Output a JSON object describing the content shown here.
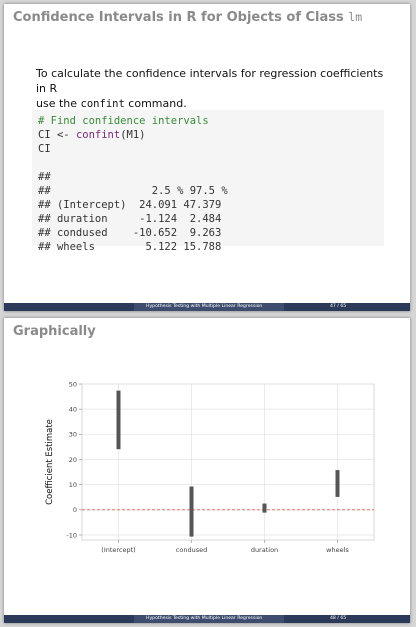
{
  "slide1": {
    "title_prefix": "Confidence Intervals in R for Objects of Class",
    "title_code": "lm",
    "intro_part1": "To calculate the confidence intervals for regression coefficients in R",
    "intro_part2_pre": "use the",
    "intro_code": "confint",
    "intro_part2_post": "command.",
    "code": {
      "comment": "# Find confidence intervals",
      "line2_pre": "CI <- ",
      "line2_fn": "confint",
      "line2_post": "(M1)",
      "line3": "CI",
      "out0": "##",
      "out_header": "##                2.5 % 97.5 %",
      "out_rows": [
        "## (Intercept)  24.091 47.379",
        "## duration     -1.124  2.484",
        "## condused    -10.652  9.263",
        "## wheels        5.122 15.788"
      ]
    },
    "footer_title": "Hypothesis Testing with Multiple Linear Regression",
    "footer_page": "47 / 65"
  },
  "slide2": {
    "title": "Graphically",
    "footer_title": "Hypothesis Testing with Multiple Linear Regression",
    "footer_page": "48 / 65"
  },
  "chart_data": {
    "type": "errorbar",
    "ylabel": "Coefficient Estimate",
    "xlabel": "",
    "categories": [
      "(Intercept)",
      "condused",
      "duration",
      "wheels"
    ],
    "lower": [
      24.091,
      -10.652,
      -1.124,
      5.122
    ],
    "upper": [
      47.379,
      9.263,
      2.484,
      15.788
    ],
    "ylim": [
      -12,
      50
    ],
    "yticks": [
      -10,
      0,
      10,
      20,
      30,
      40,
      50
    ],
    "reference_line": 0,
    "reference_color": "#e05a4f",
    "bar_color": "#555555",
    "grid": true
  }
}
